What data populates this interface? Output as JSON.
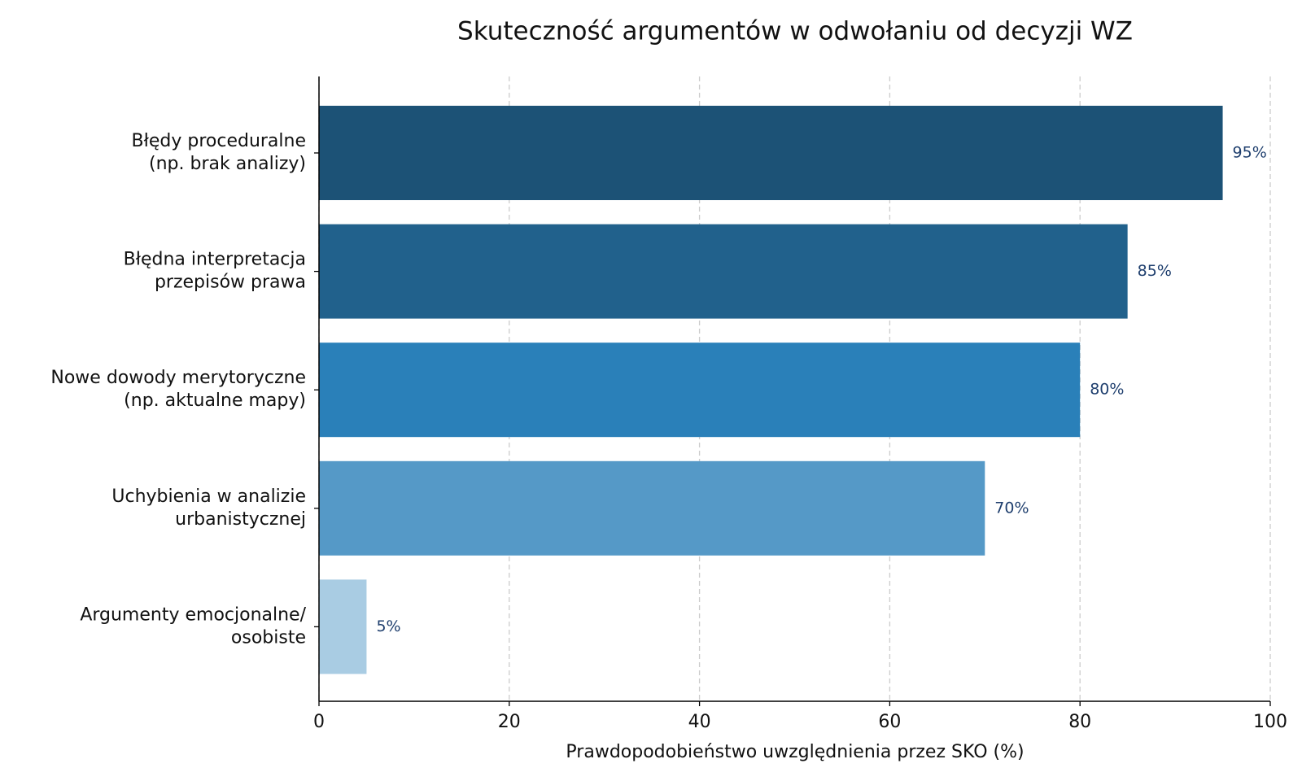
{
  "chart_data": {
    "type": "barh",
    "title": "Skuteczność argumentów w odwołaniu od decyzji WZ",
    "xlabel": "Prawdopodobieństwo uwzględnienia przez SKO (%)",
    "categories": [
      "Błędy proceduralne\n(np. brak analizy)",
      "Błędna interpretacja\nprzepisów prawa",
      "Nowe dowody merytoryczne\n(np. aktualne mapy)",
      "Uchybienia w analizie\nurbanistycznej",
      "Argumenty emocjonalne/\nosobiste"
    ],
    "values": [
      95,
      85,
      80,
      70,
      5
    ],
    "value_labels": [
      "95%",
      "85%",
      "80%",
      "70%",
      "5%"
    ],
    "colors": [
      "#1c5276",
      "#21618c",
      "#2a80b9",
      "#5599c7",
      "#a9cce3"
    ],
    "xlim": [
      0,
      100
    ],
    "xticks": [
      0,
      20,
      40,
      60,
      80,
      100
    ],
    "grid": true
  }
}
